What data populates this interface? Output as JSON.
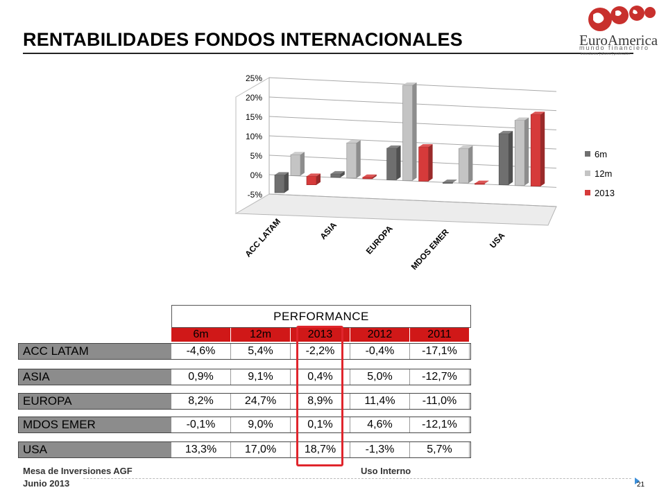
{
  "slide": {
    "title": "RENTABILIDADES FONDOS INTERNACIONALES",
    "logo": {
      "brand": "EuroAmerica",
      "sub": "mundo financiero",
      "tagline": "inversiones | ahorro | protección"
    },
    "footer": {
      "left_line1": "Mesa de Inversiones AGF",
      "left_line2": "Junio 2013",
      "center": "Uso Interno",
      "page": "21"
    }
  },
  "colors": {
    "accent_red": "#d01818",
    "series_6m": "#6f6f6f",
    "series_12m": "#c4c4c4",
    "series_2013": "#d63a3a",
    "label_bg": "#8c8c8c"
  },
  "chart_data": {
    "type": "bar",
    "categories": [
      "ACC LATAM",
      "ASIA",
      "EUROPA",
      "MDOS EMER",
      "USA"
    ],
    "series": [
      {
        "name": "6m",
        "values": [
          -4.6,
          0.9,
          8.2,
          -0.1,
          13.3
        ]
      },
      {
        "name": "12m",
        "values": [
          5.4,
          9.1,
          24.7,
          9.0,
          17.0
        ]
      },
      {
        "name": "2013",
        "values": [
          -2.2,
          0.4,
          8.9,
          0.1,
          18.7
        ]
      }
    ],
    "ylim": [
      -5,
      25
    ],
    "yticks": [
      "25%",
      "20%",
      "15%",
      "10%",
      "5%",
      "0%",
      "-5%"
    ],
    "grid": true,
    "legend": "right"
  },
  "table": {
    "title": "PERFORMANCE",
    "columns": [
      "6m",
      "12m",
      "2013",
      "2012",
      "2011"
    ],
    "rows": [
      {
        "label": "ACC LATAM",
        "values": [
          "-4,6%",
          "5,4%",
          "-2,2%",
          "-0,4%",
          "-17,1%"
        ]
      },
      {
        "label": "ASIA",
        "values": [
          "0,9%",
          "9,1%",
          "0,4%",
          "5,0%",
          "-12,7%"
        ]
      },
      {
        "label": "EUROPA",
        "values": [
          "8,2%",
          "24,7%",
          "8,9%",
          "11,4%",
          "-11,0%"
        ]
      },
      {
        "label": "MDOS EMER",
        "values": [
          "-0,1%",
          "9,0%",
          "0,1%",
          "4,6%",
          "-12,1%"
        ]
      },
      {
        "label": "USA",
        "values": [
          "13,3%",
          "17,0%",
          "18,7%",
          "-1,3%",
          "5,7%"
        ]
      }
    ],
    "highlighted_column": "2013"
  }
}
